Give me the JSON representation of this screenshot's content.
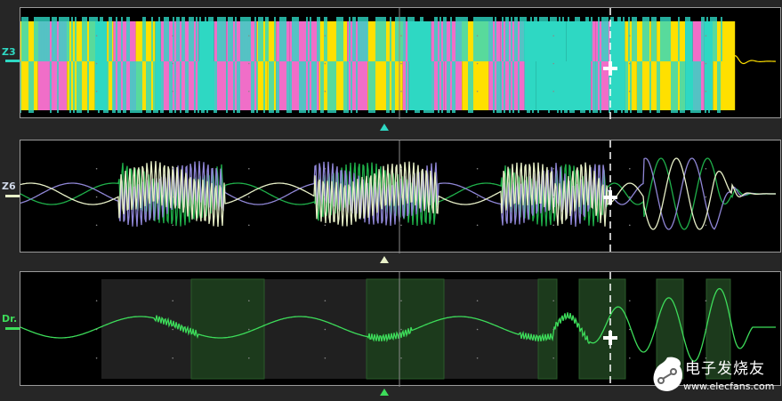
{
  "channels": [
    {
      "label": "Z3",
      "color": "#2ed8c3",
      "secondary": [
        "#f06ec8",
        "#ffe000"
      ]
    },
    {
      "label": "Z6",
      "color": "#1fb04a",
      "secondary": [
        "#8f86d6",
        "#e8f0c8"
      ]
    },
    {
      "label": "Dr.",
      "color": "#3ddc5a"
    }
  ],
  "watermark": {
    "name": "电子发烧友",
    "url": "www.elecfans.com"
  },
  "colors": {
    "grid": "#8a8a8a",
    "cursor": "#ffffff",
    "highlight": "#1c3a1c",
    "region": "#202020"
  }
}
